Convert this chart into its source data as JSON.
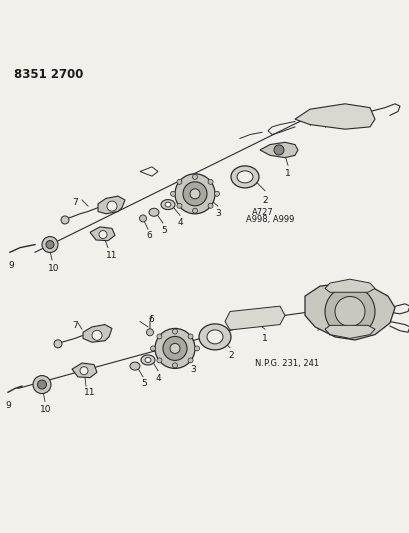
{
  "title_code": "8351 2700",
  "background_color": "#f2f0eb",
  "line_color": "#2a2a2a",
  "text_color": "#1a1a1a",
  "label_color": "#333333",
  "diagram1_label": "A727\nA998, A999",
  "diagram2_label": "N.P.G. 231, 241",
  "fig_width": 4.1,
  "fig_height": 5.33,
  "dpi": 100
}
